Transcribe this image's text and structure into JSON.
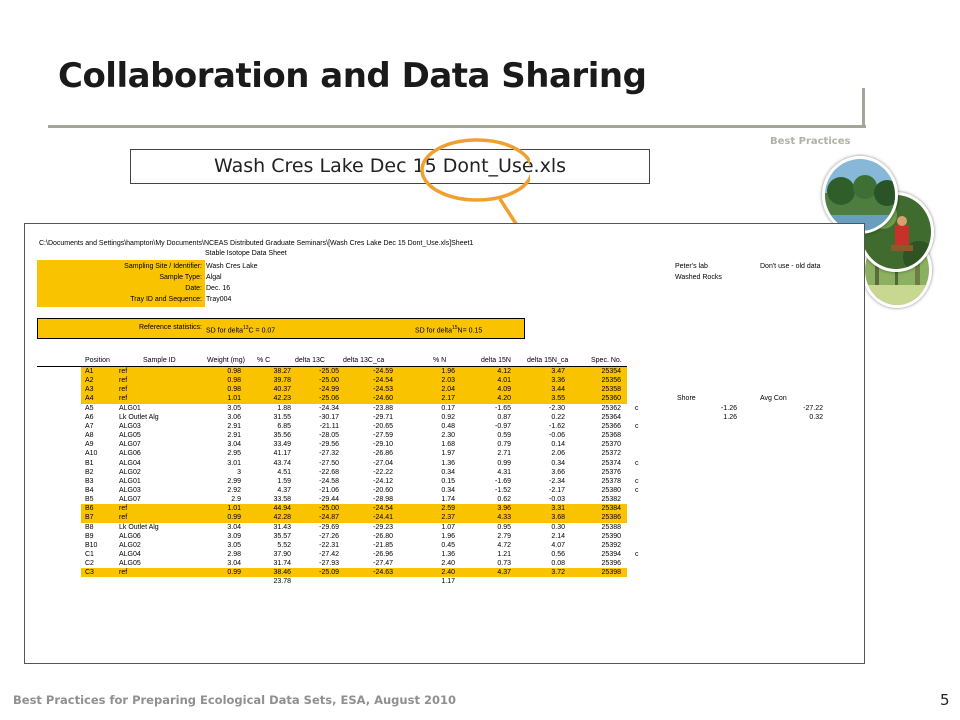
{
  "slide": {
    "title": "Collaboration and Data Sharing",
    "section_label": "Best Practices",
    "filename": "Wash Cres Lake Dec 15 Dont_Use.xls",
    "footer": "Best Practices for Preparing Ecological Data Sets, ESA, August 2010",
    "page_number": "5",
    "accent_color": "#f9c300",
    "callout_color": "#f0a030"
  },
  "sheet": {
    "path": "C:\\Documents and Settings\\hampton\\My Documents\\NCEAS Distributed Graduate Seminars\\[Wash Cres Lake Dec 15 Dont_Use.xls]Sheet1",
    "sheet_title": "Stable Isotope Data Sheet",
    "meta": [
      {
        "label": "Sampling Site / Identifier:",
        "value": "Wash Cres Lake"
      },
      {
        "label": "Sample Type:",
        "value": "Algal"
      },
      {
        "label": "Date:",
        "value": "Dec. 16"
      },
      {
        "label": "Tray ID and Sequence:",
        "value": "Tray004"
      }
    ],
    "side_notes": {
      "lab": "Peter's lab",
      "washed": "Washed Rocks",
      "warning": "Don't use - old data"
    },
    "reference": {
      "label": "Reference statistics:",
      "c_pre": "SD for delta",
      "c_sup": "13",
      "c_post": "C = 0.07",
      "n_pre": "SD for delta",
      "n_sup": "15",
      "n_post": "N= 0.15"
    },
    "columns": [
      "Position",
      "Sample ID",
      "Weight (mg)",
      "% C",
      "delta 13C",
      "delta 13C_ca",
      "% N",
      "delta 15N",
      "delta 15N_ca",
      "Spec. No."
    ],
    "rows": [
      {
        "pos": "A1",
        "id": "ref",
        "w": "0.98",
        "c": "38.27",
        "d13": "-25.05",
        "d13ca": "-24.59",
        "n": "1.96",
        "d15": "4.12",
        "d15ca": "3.47",
        "spec": "25354",
        "flag": "",
        "hl": true
      },
      {
        "pos": "A2",
        "id": "ref",
        "w": "0.98",
        "c": "39.78",
        "d13": "-25.00",
        "d13ca": "-24.54",
        "n": "2.03",
        "d15": "4.01",
        "d15ca": "3.36",
        "spec": "25356",
        "flag": "",
        "hl": true
      },
      {
        "pos": "A3",
        "id": "ref",
        "w": "0.98",
        "c": "40.37",
        "d13": "-24.99",
        "d13ca": "-24.53",
        "n": "2.04",
        "d15": "4.09",
        "d15ca": "3.44",
        "spec": "25358",
        "flag": "",
        "hl": true
      },
      {
        "pos": "A4",
        "id": "ref",
        "w": "1.01",
        "c": "42.23",
        "d13": "-25.06",
        "d13ca": "-24.60",
        "n": "2.17",
        "d15": "4.20",
        "d15ca": "3.55",
        "spec": "25360",
        "flag": "",
        "hl": true
      },
      {
        "pos": "A5",
        "id": "ALG01",
        "w": "3.05",
        "c": "1.88",
        "d13": "-24.34",
        "d13ca": "-23.88",
        "n": "0.17",
        "d15": "-1.65",
        "d15ca": "-2.30",
        "spec": "25362",
        "flag": "c",
        "hl": false
      },
      {
        "pos": "A6",
        "id": "Lk Outlet Alg",
        "w": "3.06",
        "c": "31.55",
        "d13": "-30.17",
        "d13ca": "-29.71",
        "n": "0.92",
        "d15": "0.87",
        "d15ca": "0.22",
        "spec": "25364",
        "flag": "",
        "hl": false
      },
      {
        "pos": "A7",
        "id": "ALG03",
        "w": "2.91",
        "c": "6.85",
        "d13": "-21.11",
        "d13ca": "-20.65",
        "n": "0.48",
        "d15": "-0.97",
        "d15ca": "-1.62",
        "spec": "25366",
        "flag": "c",
        "hl": false
      },
      {
        "pos": "A8",
        "id": "ALG05",
        "w": "2.91",
        "c": "35.56",
        "d13": "-28.05",
        "d13ca": "-27.59",
        "n": "2.30",
        "d15": "0.59",
        "d15ca": "-0.06",
        "spec": "25368",
        "flag": "",
        "hl": false
      },
      {
        "pos": "A9",
        "id": "ALG07",
        "w": "3.04",
        "c": "33.49",
        "d13": "-29.56",
        "d13ca": "-29.10",
        "n": "1.68",
        "d15": "0.79",
        "d15ca": "0.14",
        "spec": "25370",
        "flag": "",
        "hl": false
      },
      {
        "pos": "A10",
        "id": "ALG06",
        "w": "2.95",
        "c": "41.17",
        "d13": "-27.32",
        "d13ca": "-26.86",
        "n": "1.97",
        "d15": "2.71",
        "d15ca": "2.06",
        "spec": "25372",
        "flag": "",
        "hl": false
      },
      {
        "pos": "B1",
        "id": "ALG04",
        "w": "3.01",
        "c": "43.74",
        "d13": "-27.50",
        "d13ca": "-27.04",
        "n": "1.36",
        "d15": "0.99",
        "d15ca": "0.34",
        "spec": "25374",
        "flag": "c",
        "hl": false
      },
      {
        "pos": "B2",
        "id": "ALG02",
        "w": "3",
        "c": "4.51",
        "d13": "-22.68",
        "d13ca": "-22.22",
        "n": "0.34",
        "d15": "4.31",
        "d15ca": "3.66",
        "spec": "25376",
        "flag": "",
        "hl": false
      },
      {
        "pos": "B3",
        "id": "ALG01",
        "w": "2.99",
        "c": "1.59",
        "d13": "-24.58",
        "d13ca": "-24.12",
        "n": "0.15",
        "d15": "-1.69",
        "d15ca": "-2.34",
        "spec": "25378",
        "flag": "c",
        "hl": false
      },
      {
        "pos": "B4",
        "id": "ALG03",
        "w": "2.92",
        "c": "4.37",
        "d13": "-21.06",
        "d13ca": "-20.60",
        "n": "0.34",
        "d15": "-1.52",
        "d15ca": "-2.17",
        "spec": "25380",
        "flag": "c",
        "hl": false
      },
      {
        "pos": "B5",
        "id": "ALG07",
        "w": "2.9",
        "c": "33.58",
        "d13": "-29.44",
        "d13ca": "-28.98",
        "n": "1.74",
        "d15": "0.62",
        "d15ca": "-0.03",
        "spec": "25382",
        "flag": "",
        "hl": false
      },
      {
        "pos": "B6",
        "id": "ref",
        "w": "1.01",
        "c": "44.94",
        "d13": "-25.00",
        "d13ca": "-24.54",
        "n": "2.59",
        "d15": "3.96",
        "d15ca": "3.31",
        "spec": "25384",
        "flag": "",
        "hl": true
      },
      {
        "pos": "B7",
        "id": "ref",
        "w": "0.99",
        "c": "42.28",
        "d13": "-24.87",
        "d13ca": "-24.41",
        "n": "2.37",
        "d15": "4.33",
        "d15ca": "3.68",
        "spec": "25386",
        "flag": "",
        "hl": true
      },
      {
        "pos": "B8",
        "id": "Lk Outlet Alg",
        "w": "3.04",
        "c": "31.43",
        "d13": "-29.69",
        "d13ca": "-29.23",
        "n": "1.07",
        "d15": "0.95",
        "d15ca": "0.30",
        "spec": "25388",
        "flag": "",
        "hl": false
      },
      {
        "pos": "B9",
        "id": "ALG06",
        "w": "3.09",
        "c": "35.57",
        "d13": "-27.26",
        "d13ca": "-26.80",
        "n": "1.96",
        "d15": "2.79",
        "d15ca": "2.14",
        "spec": "25390",
        "flag": "",
        "hl": false
      },
      {
        "pos": "B10",
        "id": "ALG02",
        "w": "3.05",
        "c": "5.52",
        "d13": "-22.31",
        "d13ca": "-21.85",
        "n": "0.45",
        "d15": "4.72",
        "d15ca": "4.07",
        "spec": "25392",
        "flag": "",
        "hl": false
      },
      {
        "pos": "C1",
        "id": "ALG04",
        "w": "2.98",
        "c": "37.90",
        "d13": "-27.42",
        "d13ca": "-26.96",
        "n": "1.36",
        "d15": "1.21",
        "d15ca": "0.56",
        "spec": "25394",
        "flag": "c",
        "hl": false
      },
      {
        "pos": "C2",
        "id": "ALG05",
        "w": "3.04",
        "c": "31.74",
        "d13": "-27.93",
        "d13ca": "-27.47",
        "n": "2.40",
        "d15": "0.73",
        "d15ca": "0.08",
        "spec": "25396",
        "flag": "",
        "hl": false
      },
      {
        "pos": "C3",
        "id": "ref",
        "w": "0.99",
        "c": "38.46",
        "d13": "-25.09",
        "d13ca": "-24.63",
        "n": "2.40",
        "d15": "4.37",
        "d15ca": "3.72",
        "spec": "25398",
        "flag": "",
        "hl": true
      }
    ],
    "totals": {
      "c": "23.78",
      "n": "1.17"
    },
    "shore_table": {
      "headers": [
        "Shore",
        "Avg Con"
      ],
      "row1": [
        "-1.26",
        "-27.22"
      ],
      "row2": [
        "1.26",
        "0.32"
      ]
    }
  }
}
